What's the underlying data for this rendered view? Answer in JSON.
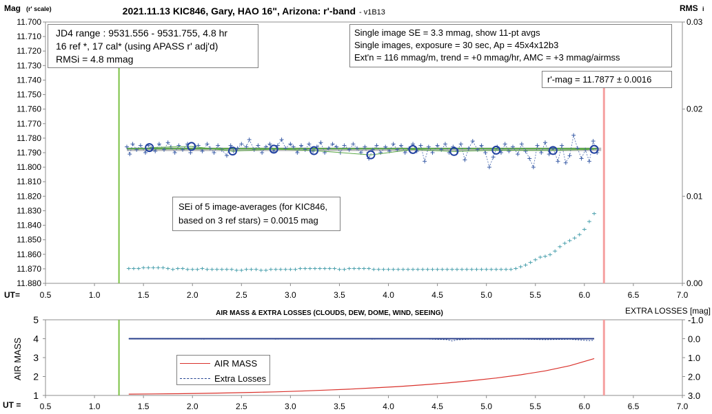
{
  "colors": {
    "air_mass": "#d9302a",
    "extra_losses": "#1f3f8f",
    "mag_points": "#3d5fa8",
    "averages": "#1f3f9f",
    "trend": "#5aa845",
    "model": "#bbbbbb",
    "rms": "#4aa0ad",
    "start_line": "#7ac142",
    "end_line": "#f5a0a0"
  },
  "top": {
    "title": "2021.11.13 KIC846, Gary, HAO 16\", Arizona: r'-band",
    "version": "- v1B13",
    "y_left_label": "Mag",
    "y_left_label_sub": "(r' scale)",
    "y_right_label": "RMS",
    "y_right_label_sub": "i",
    "x_label": "UT=",
    "info_left": [
      "JD4 range : 9531.556 - 9531.755,  4.8  hr",
      "16 ref *, 17 cal* (using APASS r' adj'd)",
      "RMSi = 4.8 mmag"
    ],
    "info_right": [
      "Single image SE = 3.3 mmag, show  11-pt avgs",
      "Single images, exposure = 30 sec, Ap = 45x4x12b3",
      "Ext'n = 116 mmag/m, trend = +0  mmag/hr, AMC = +3 mmag/airmss"
    ],
    "result": "r'-mag = 11.7877 ± 0.0016",
    "sei_note": [
      "SEi of 5 image-averages (for KIC846,",
      "based on 3 ref stars) = 0.0015 mag"
    ]
  },
  "bottom": {
    "title": "AIR MASS & EXTRA LOSSES (CLOUDS, DEW, DOME, WIND, SEEING)",
    "y_left_label": "AIR MASS",
    "y_right_label": "EXTRA LOSSES [mag]",
    "x_label": "UT =",
    "legend": [
      "AIR MASS",
      "Extra Losses"
    ]
  },
  "chart_data": [
    {
      "type": "scatter",
      "title": "2021.11.13 KIC846, Gary, HAO 16\", Arizona: r'-band",
      "xlabel": "UT=",
      "ylabel": "Mag (r' scale)",
      "y2label": "RMS i",
      "xlim": [
        0.5,
        7.0
      ],
      "ylim": [
        11.88,
        11.7
      ],
      "y2lim": [
        0.0,
        0.03
      ],
      "x_ticks": [
        "0.5",
        "1.0",
        "1.5",
        "2.0",
        "2.5",
        "3.0",
        "3.5",
        "4.0",
        "4.5",
        "5.0",
        "5.5",
        "6.0",
        "6.5",
        "7.0"
      ],
      "y_ticks": [
        "11.700",
        "11.710",
        "11.720",
        "11.730",
        "11.740",
        "11.750",
        "11.760",
        "11.770",
        "11.780",
        "11.790",
        "11.800",
        "11.810",
        "11.820",
        "11.830",
        "11.840",
        "11.850",
        "11.860",
        "11.870",
        "11.880"
      ],
      "y2_ticks": [
        "0.00",
        "0.01",
        "0.02",
        "0.03"
      ],
      "grid": false,
      "start_ut": 1.25,
      "end_ut": 6.2,
      "mean_mag": 11.7877,
      "series": [
        {
          "name": "Single images",
          "x": [
            1.33,
            1.36,
            1.39,
            1.43,
            1.47,
            1.52,
            1.55,
            1.58,
            1.62,
            1.66,
            1.71,
            1.75,
            1.78,
            1.82,
            1.86,
            1.9,
            1.95,
            1.98,
            2.02,
            2.06,
            2.1,
            2.15,
            2.18,
            2.22,
            2.26,
            2.3,
            2.35,
            2.39,
            2.42,
            2.46,
            2.5,
            2.55,
            2.58,
            2.63,
            2.67,
            2.71,
            2.75,
            2.79,
            2.83,
            2.87,
            2.91,
            2.95,
            3.0,
            3.03,
            3.07,
            3.11,
            3.15,
            3.19,
            3.23,
            3.27,
            3.31,
            3.35,
            3.39,
            3.43,
            3.47,
            3.51,
            3.55,
            3.6,
            3.64,
            3.68,
            3.72,
            3.76,
            3.8,
            3.84,
            3.88,
            3.92,
            3.97,
            4.01,
            4.05,
            4.09,
            4.13,
            4.17,
            4.21,
            4.25,
            4.29,
            4.33,
            4.37,
            4.41,
            4.45,
            4.5,
            4.54,
            4.58,
            4.62,
            4.66,
            4.7,
            4.74,
            4.78,
            4.82,
            4.86,
            4.91,
            4.95,
            4.99,
            5.03,
            5.07,
            5.11,
            5.15,
            5.19,
            5.23,
            5.27,
            5.32,
            5.36,
            5.4,
            5.44,
            5.48,
            5.52,
            5.56,
            5.6,
            5.64,
            5.68,
            5.73,
            5.77,
            5.81,
            5.85,
            5.89,
            5.93,
            5.97,
            6.01,
            6.05,
            6.09,
            6.13
          ],
          "values": [
            11.786,
            11.791,
            11.784,
            11.788,
            11.785,
            11.79,
            11.785,
            11.787,
            11.789,
            11.784,
            11.788,
            11.783,
            11.786,
            11.79,
            11.785,
            11.788,
            11.784,
            11.79,
            11.786,
            11.785,
            11.789,
            11.784,
            11.787,
            11.79,
            11.785,
            11.788,
            11.792,
            11.785,
            11.789,
            11.787,
            11.784,
            11.786,
            11.781,
            11.788,
            11.785,
            11.79,
            11.786,
            11.784,
            11.789,
            11.785,
            11.781,
            11.787,
            11.784,
            11.786,
            11.79,
            11.785,
            11.788,
            11.784,
            11.789,
            11.786,
            11.783,
            11.79,
            11.787,
            11.784,
            11.786,
            11.79,
            11.785,
            11.788,
            11.784,
            11.787,
            11.79,
            11.786,
            11.794,
            11.788,
            11.785,
            11.79,
            11.786,
            11.789,
            11.784,
            11.788,
            11.785,
            11.79,
            11.787,
            11.784,
            11.789,
            11.785,
            11.796,
            11.786,
            11.79,
            11.785,
            11.788,
            11.784,
            11.79,
            11.786,
            11.789,
            11.784,
            11.795,
            11.787,
            11.782,
            11.788,
            11.785,
            11.79,
            11.8,
            11.793,
            11.786,
            11.79,
            11.784,
            11.789,
            11.786,
            11.791,
            11.784,
            11.789,
            11.794,
            11.8,
            11.785,
            11.79,
            11.783,
            11.791,
            11.787,
            11.796,
            11.785,
            11.797,
            11.792,
            11.778,
            11.787,
            11.794,
            11.788,
            11.796,
            11.782,
            11.79
          ]
        },
        {
          "name": "11-pt avgs",
          "x": [
            1.56,
            1.99,
            2.41,
            2.83,
            3.24,
            3.82,
            4.25,
            4.67,
            5.1,
            5.68,
            6.1
          ],
          "values": [
            11.7865,
            11.7857,
            11.7889,
            11.7876,
            11.7886,
            11.7915,
            11.7878,
            11.7892,
            11.7883,
            11.7885,
            11.7877
          ]
        },
        {
          "name": "RMSi",
          "x": [
            1.35,
            1.4,
            1.45,
            1.5,
            1.55,
            1.6,
            1.65,
            1.7,
            1.75,
            1.8,
            1.85,
            1.9,
            1.95,
            2.0,
            2.05,
            2.1,
            2.15,
            2.2,
            2.25,
            2.3,
            2.35,
            2.4,
            2.45,
            2.5,
            2.55,
            2.6,
            2.65,
            2.7,
            2.75,
            2.8,
            2.85,
            2.9,
            2.95,
            3.0,
            3.05,
            3.1,
            3.15,
            3.2,
            3.25,
            3.3,
            3.35,
            3.4,
            3.45,
            3.5,
            3.55,
            3.6,
            3.65,
            3.7,
            3.75,
            3.8,
            3.85,
            3.9,
            3.95,
            4.0,
            4.05,
            4.1,
            4.15,
            4.2,
            4.25,
            4.3,
            4.35,
            4.4,
            4.45,
            4.5,
            4.55,
            4.6,
            4.65,
            4.7,
            4.75,
            4.8,
            4.85,
            4.9,
            4.95,
            5.0,
            5.05,
            5.1,
            5.15,
            5.2,
            5.25,
            5.3,
            5.35,
            5.4,
            5.45,
            5.5,
            5.55,
            5.6,
            5.65,
            5.7,
            5.75,
            5.8,
            5.85,
            5.9,
            5.95,
            6.0,
            6.05,
            6.1
          ],
          "values": [
            0.0017,
            0.0017,
            0.0017,
            0.0018,
            0.0018,
            0.0018,
            0.0018,
            0.0018,
            0.0017,
            0.0016,
            0.0017,
            0.0017,
            0.0016,
            0.0016,
            0.0016,
            0.0017,
            0.0016,
            0.0016,
            0.0016,
            0.0016,
            0.0016,
            0.0016,
            0.0015,
            0.0015,
            0.0016,
            0.0016,
            0.0016,
            0.0015,
            0.0015,
            0.0016,
            0.0016,
            0.0016,
            0.0016,
            0.0016,
            0.0016,
            0.0017,
            0.0017,
            0.0017,
            0.0017,
            0.0017,
            0.0017,
            0.0017,
            0.0017,
            0.0016,
            0.0016,
            0.0017,
            0.0017,
            0.0017,
            0.0017,
            0.0017,
            0.0016,
            0.0016,
            0.0016,
            0.0016,
            0.0016,
            0.0016,
            0.0016,
            0.0016,
            0.0016,
            0.0016,
            0.0016,
            0.0016,
            0.0016,
            0.0016,
            0.0016,
            0.0016,
            0.0016,
            0.0016,
            0.0016,
            0.0016,
            0.0016,
            0.0016,
            0.0016,
            0.0016,
            0.0016,
            0.0016,
            0.0016,
            0.0016,
            0.0016,
            0.0017,
            0.0019,
            0.0021,
            0.0024,
            0.0027,
            0.003,
            0.0031,
            0.0033,
            0.0037,
            0.0042,
            0.0046,
            0.0049,
            0.0052,
            0.0056,
            0.0062,
            0.0071,
            0.008
          ]
        }
      ]
    },
    {
      "type": "line",
      "title": "AIR MASS & EXTRA LOSSES (CLOUDS, DEW, DOME, WIND, SEEING)",
      "xlabel": "UT =",
      "ylabel": "AIR MASS",
      "y2label": "EXTRA LOSSES [mag]",
      "xlim": [
        0.5,
        7.0
      ],
      "ylim": [
        1,
        5
      ],
      "y2lim": [
        3.0,
        -1.0
      ],
      "x_ticks": [
        "0.5",
        "1.0",
        "1.5",
        "2.0",
        "2.5",
        "3.0",
        "3.5",
        "4.0",
        "4.5",
        "5.0",
        "5.5",
        "6.0",
        "6.5",
        "7.0"
      ],
      "y_ticks": [
        "1",
        "2",
        "3",
        "4",
        "5"
      ],
      "y2_ticks": [
        "-1.0",
        "0.0",
        "1.0",
        "2.0",
        "3.0"
      ],
      "legend_position": "lower-left",
      "series": [
        {
          "name": "AIR MASS",
          "x": [
            1.35,
            1.6,
            1.85,
            2.1,
            2.35,
            2.6,
            2.85,
            3.1,
            3.35,
            3.6,
            3.85,
            4.1,
            4.35,
            4.6,
            4.85,
            5.1,
            5.35,
            5.6,
            5.85,
            6.1
          ],
          "values": [
            1.07,
            1.08,
            1.09,
            1.11,
            1.13,
            1.16,
            1.19,
            1.23,
            1.28,
            1.33,
            1.4,
            1.47,
            1.56,
            1.66,
            1.78,
            1.92,
            2.09,
            2.3,
            2.57,
            2.95
          ]
        },
        {
          "name": "Extra Losses",
          "x": [
            1.35,
            1.6,
            1.85,
            2.1,
            2.35,
            2.6,
            2.85,
            3.1,
            3.35,
            3.6,
            3.85,
            4.1,
            4.35,
            4.6,
            4.65,
            4.7,
            4.85,
            5.1,
            5.35,
            5.6,
            5.85,
            6.05,
            6.1
          ],
          "values": [
            0.0,
            0.01,
            0.0,
            0.02,
            0.01,
            0.0,
            0.02,
            0.01,
            0.0,
            0.01,
            0.02,
            0.0,
            0.01,
            0.05,
            0.12,
            0.06,
            0.02,
            0.03,
            0.02,
            0.05,
            0.03,
            0.1,
            0.08
          ]
        }
      ]
    }
  ]
}
